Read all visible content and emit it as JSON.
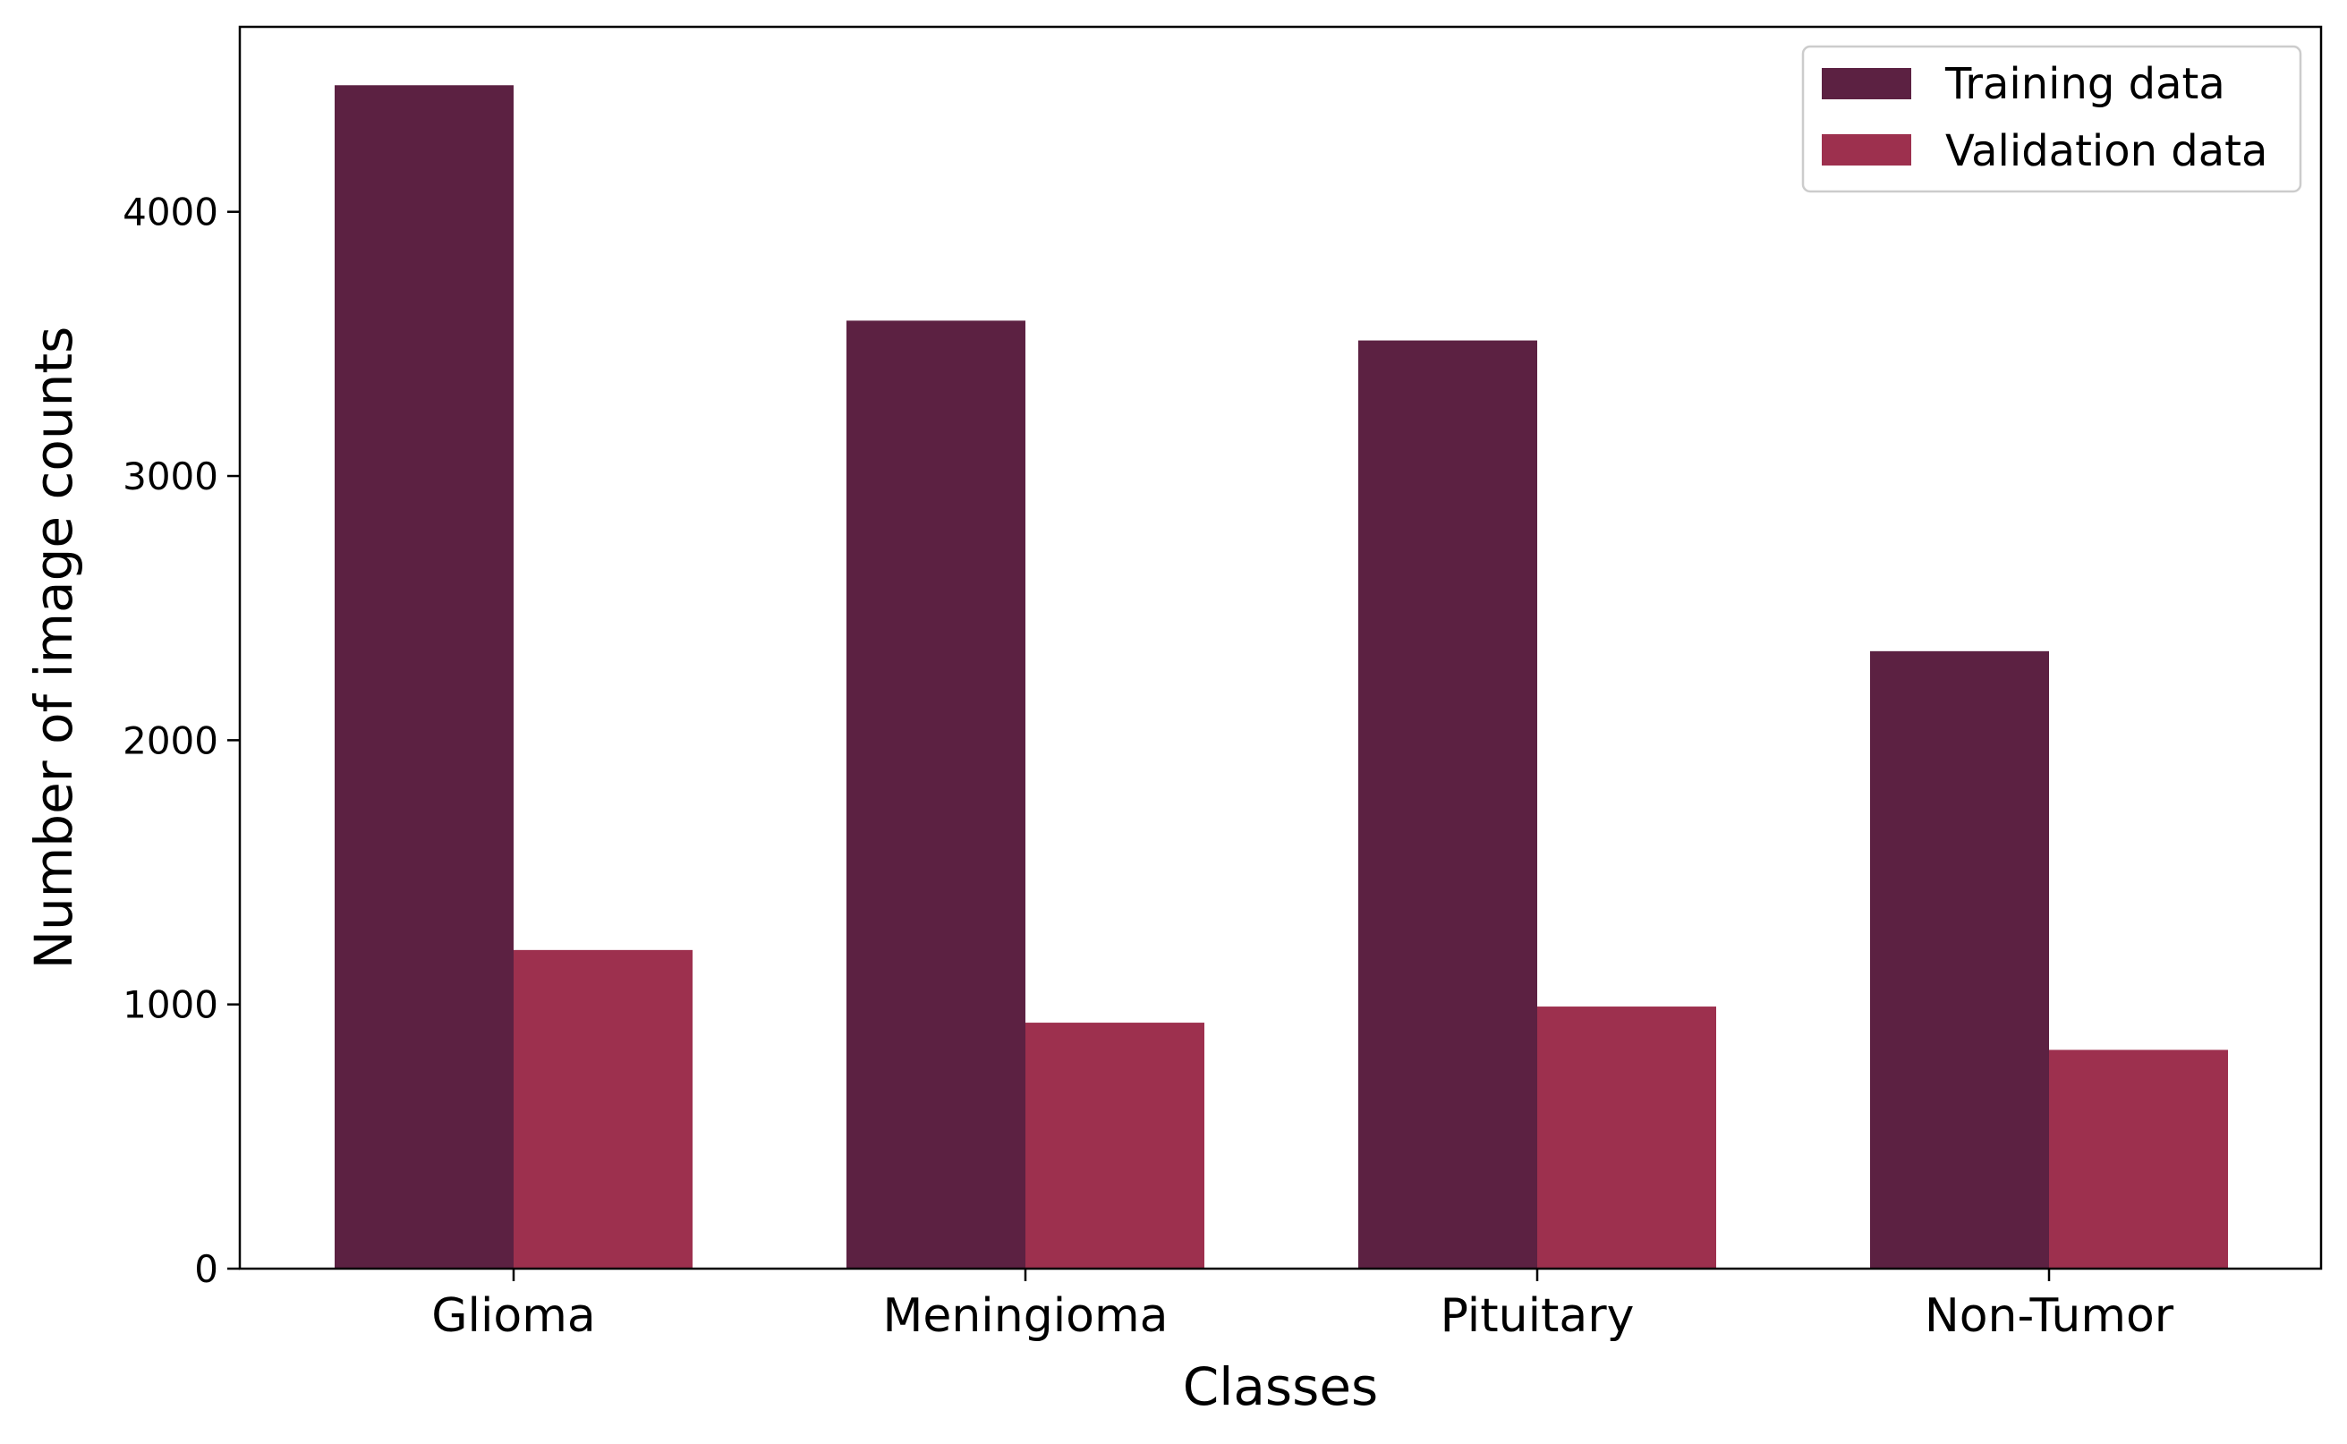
{
  "chart_data": {
    "type": "bar",
    "title": "",
    "xlabel": "Classes",
    "ylabel": "Number of image counts",
    "categories": [
      "Glioma",
      "Meningioma",
      "Pituitary",
      "Non-Tumor"
    ],
    "series": [
      {
        "name": "Training data",
        "values": [
          4479,
          3588,
          3513,
          2337
        ],
        "color": "#5c2142"
      },
      {
        "name": "Validation data",
        "values": [
          1206,
          931,
          992,
          828
        ],
        "color": "#9d304e"
      }
    ],
    "yticks": [
      0,
      1000,
      2000,
      3000,
      4000
    ],
    "ylim": [
      0,
      4700
    ],
    "grid": false,
    "legend_position": "top-right"
  }
}
